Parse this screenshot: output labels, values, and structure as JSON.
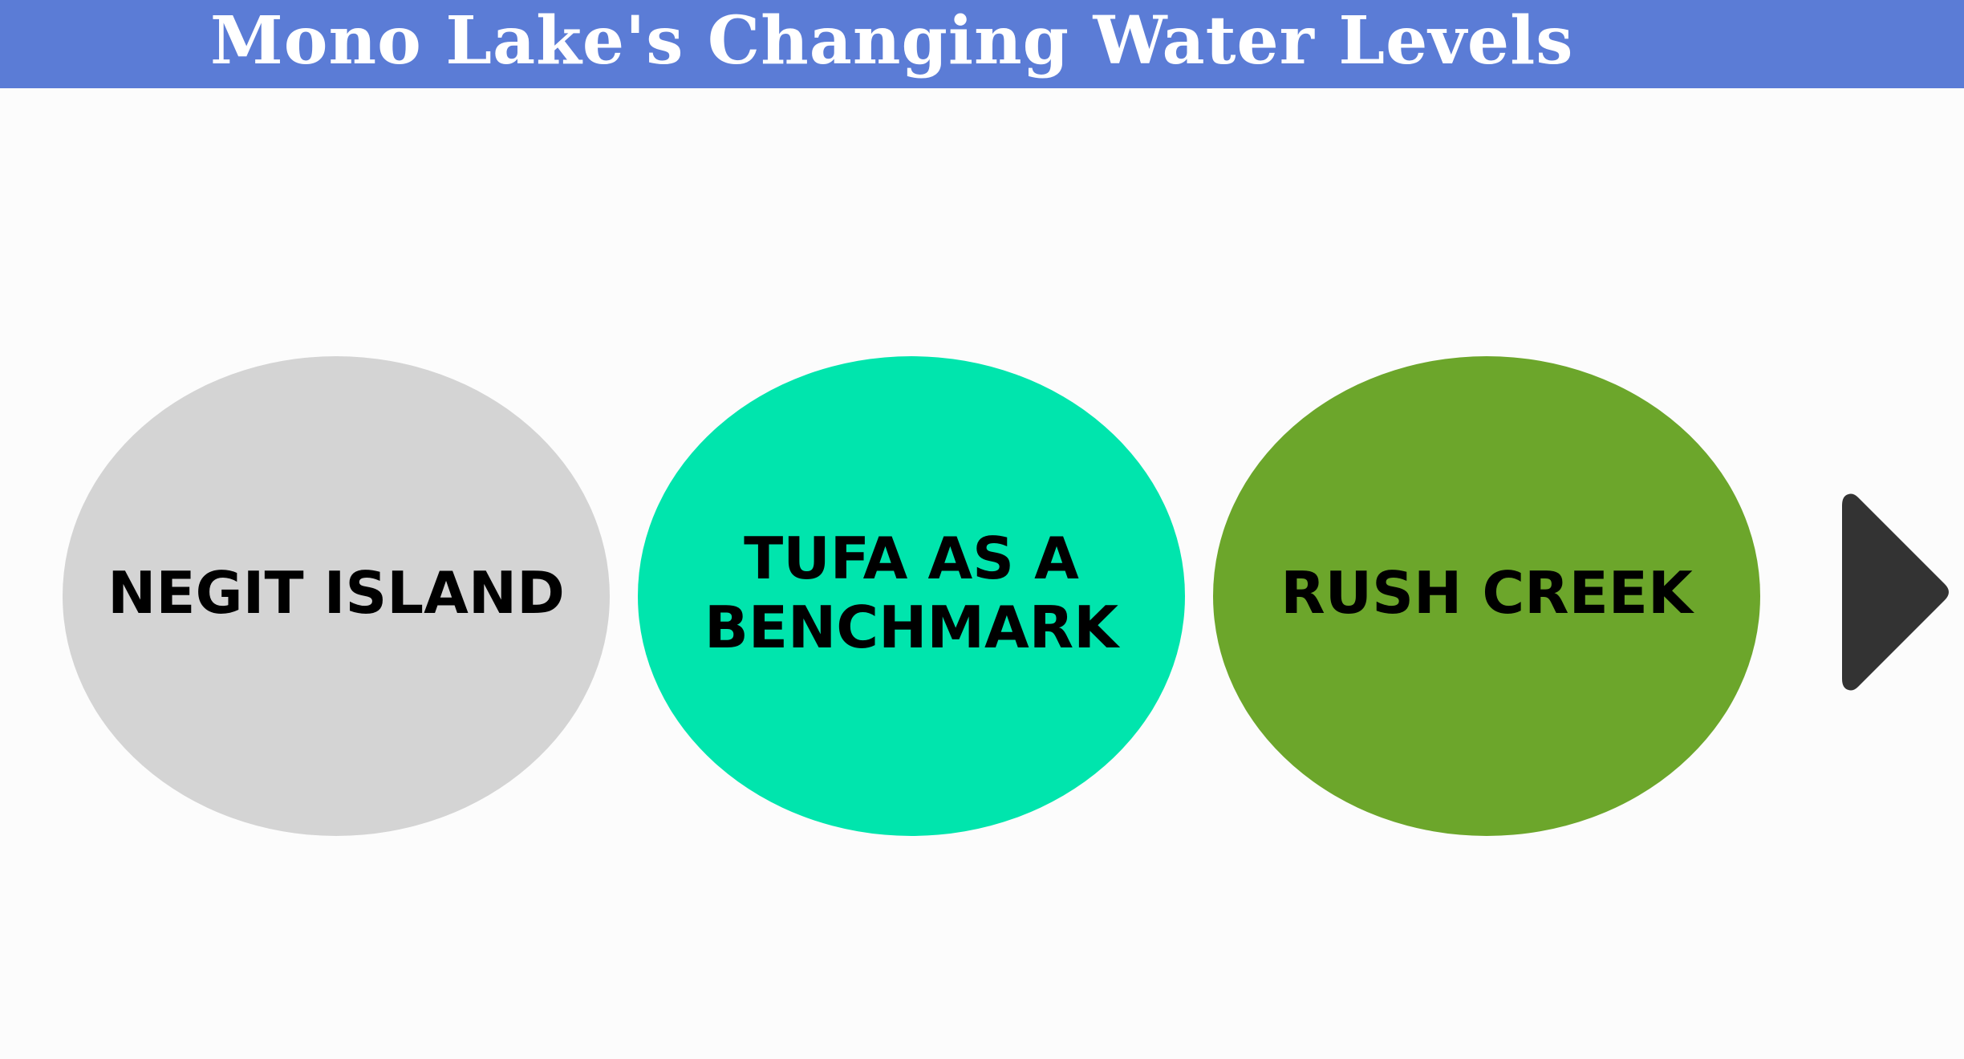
{
  "header": {
    "title": "Mono Lake's Changing Water Levels",
    "background_color": "#5b7cd6"
  },
  "topics": [
    {
      "label": "NEGIT ISLAND",
      "color": "#d4d4d4"
    },
    {
      "label": "TUFA AS A BENCHMARK",
      "color": "#00e5ad"
    },
    {
      "label": "RUSH CREEK",
      "color": "#6ca62b"
    }
  ],
  "navigation": {
    "next_icon": "play-arrow-right-icon",
    "icon_color": "#333333"
  }
}
